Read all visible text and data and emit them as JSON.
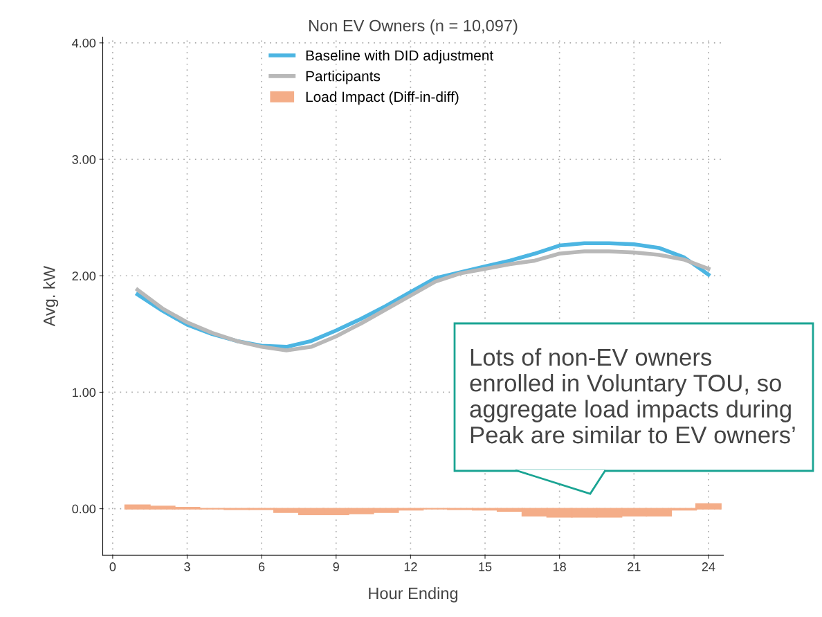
{
  "chart_data": {
    "type": "line",
    "title": "Non EV Owners (n = 10,097)",
    "xlabel": "Hour Ending",
    "ylabel": "Avg. kW",
    "x": [
      1,
      2,
      3,
      4,
      5,
      6,
      7,
      8,
      9,
      10,
      11,
      12,
      13,
      14,
      15,
      16,
      17,
      18,
      19,
      20,
      21,
      22,
      23,
      24
    ],
    "series": [
      {
        "name": "Baseline with DID adjustment",
        "color": "#4cb5e2",
        "values": [
          1.84,
          1.7,
          1.58,
          1.5,
          1.44,
          1.4,
          1.39,
          1.44,
          1.53,
          1.63,
          1.74,
          1.86,
          1.98,
          2.03,
          2.08,
          2.13,
          2.19,
          2.26,
          2.28,
          2.28,
          2.27,
          2.24,
          2.16,
          2.01
        ]
      },
      {
        "name": "Participants",
        "color": "#b8b8b8",
        "values": [
          1.88,
          1.72,
          1.6,
          1.51,
          1.44,
          1.39,
          1.36,
          1.39,
          1.48,
          1.59,
          1.71,
          1.83,
          1.95,
          2.02,
          2.06,
          2.1,
          2.13,
          2.19,
          2.21,
          2.21,
          2.2,
          2.18,
          2.14,
          2.06
        ]
      },
      {
        "name": "Load Impact (Diff-in-diff)",
        "type": "bar",
        "color": "#f4ad88",
        "values": [
          0.03,
          0.02,
          0.01,
          0.0,
          -0.005,
          -0.005,
          -0.03,
          -0.05,
          -0.05,
          -0.04,
          -0.03,
          -0.01,
          0.0,
          -0.005,
          -0.01,
          -0.02,
          -0.06,
          -0.07,
          -0.07,
          -0.07,
          -0.06,
          -0.06,
          -0.01,
          0.04
        ]
      }
    ],
    "xlim": [
      -0.4,
      24.6
    ],
    "xticks": [
      0,
      3,
      6,
      9,
      12,
      15,
      18,
      21,
      24
    ],
    "ylim": [
      -0.4,
      4.05
    ],
    "yticks": [
      {
        "value": 0,
        "label": "0.00"
      },
      {
        "value": 1,
        "label": "1.00"
      },
      {
        "value": 2,
        "label": "2.00"
      },
      {
        "value": 3,
        "label": "3.00"
      },
      {
        "value": 4,
        "label": "4.00"
      }
    ],
    "grid": true,
    "legend": "top",
    "annotations": [
      "Lots of non-EV owners\nenrolled in Voluntary TOU, so\naggregate load impacts during\nPeak are similar to EV owners’"
    ]
  }
}
